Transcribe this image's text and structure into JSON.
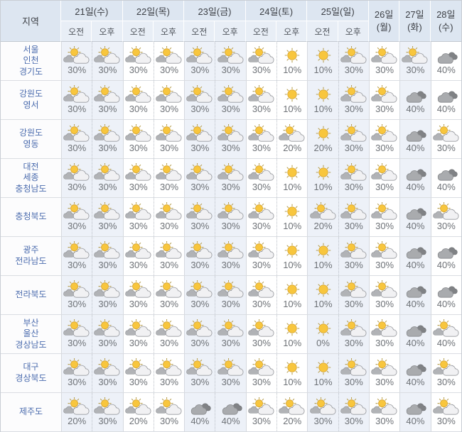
{
  "colors": {
    "day_tint": "#edf1f8",
    "header_day_bg": "#dde6f1",
    "header_sub_bg": "#e8eef6",
    "region_text": "#4b6cae",
    "percent_text": "#6e7277",
    "header_text": "#3d4046",
    "sun_fill": "#f8c63d",
    "sun_stroke": "#d9a62f",
    "ray_color": "#b49b4a",
    "light_cloud_fill": "#f1f1f3",
    "light_cloud_stroke": "#97999e",
    "small_dark_cloud_fill": "#b1b3b6",
    "small_dark_cloud_stroke": "#8a8c90",
    "gray_cloud_fill": "#a9abae",
    "gray_cloud_stroke": "#87898c",
    "back_cloud_fill": "#808285",
    "back_cloud_stroke": "#6c6e71"
  },
  "table": {
    "region_header": "지역",
    "am_label": "오전",
    "pm_label": "오후",
    "icons": {
      "partly_cloudy": "sun-behind-clouds",
      "sunny": "sun",
      "cloudy": "gray-clouds"
    },
    "days": [
      {
        "label": "21일(수)",
        "split": true,
        "tint": true
      },
      {
        "label": "22일(목)",
        "split": true,
        "tint": false
      },
      {
        "label": "23일(금)",
        "split": true,
        "tint": true
      },
      {
        "label": "24일(토)",
        "split": true,
        "tint": false
      },
      {
        "label": "25일(일)",
        "split": true,
        "tint": true
      },
      {
        "label": "26일",
        "sublabel": "(월)",
        "split": false,
        "tint": false
      },
      {
        "label": "27일",
        "sublabel": "(화)",
        "split": false,
        "tint": true
      },
      {
        "label": "28일",
        "sublabel": "(수)",
        "split": false,
        "tint": false
      }
    ],
    "rows": [
      {
        "region": [
          "서울",
          "인천",
          "경기도"
        ],
        "cells": [
          {
            "icon": "partly_cloudy",
            "pct": "30%"
          },
          {
            "icon": "partly_cloudy",
            "pct": "30%"
          },
          {
            "icon": "partly_cloudy",
            "pct": "30%"
          },
          {
            "icon": "partly_cloudy",
            "pct": "30%"
          },
          {
            "icon": "partly_cloudy",
            "pct": "30%"
          },
          {
            "icon": "partly_cloudy",
            "pct": "30%"
          },
          {
            "icon": "partly_cloudy",
            "pct": "30%"
          },
          {
            "icon": "sunny",
            "pct": "10%"
          },
          {
            "icon": "sunny",
            "pct": "10%"
          },
          {
            "icon": "partly_cloudy",
            "pct": "30%"
          },
          {
            "icon": "partly_cloudy",
            "pct": "30%"
          },
          {
            "icon": "partly_cloudy",
            "pct": "30%"
          },
          {
            "icon": "cloudy",
            "pct": "40%"
          }
        ]
      },
      {
        "region": [
          "강원도",
          "영서"
        ],
        "cells": [
          {
            "icon": "partly_cloudy",
            "pct": "30%"
          },
          {
            "icon": "partly_cloudy",
            "pct": "30%"
          },
          {
            "icon": "partly_cloudy",
            "pct": "30%"
          },
          {
            "icon": "partly_cloudy",
            "pct": "30%"
          },
          {
            "icon": "partly_cloudy",
            "pct": "30%"
          },
          {
            "icon": "partly_cloudy",
            "pct": "30%"
          },
          {
            "icon": "partly_cloudy",
            "pct": "30%"
          },
          {
            "icon": "sunny",
            "pct": "10%"
          },
          {
            "icon": "sunny",
            "pct": "10%"
          },
          {
            "icon": "partly_cloudy",
            "pct": "30%"
          },
          {
            "icon": "partly_cloudy",
            "pct": "30%"
          },
          {
            "icon": "cloudy",
            "pct": "40%"
          },
          {
            "icon": "cloudy",
            "pct": "40%"
          }
        ]
      },
      {
        "region": [
          "강원도",
          "영동"
        ],
        "cells": [
          {
            "icon": "partly_cloudy",
            "pct": "30%"
          },
          {
            "icon": "partly_cloudy",
            "pct": "30%"
          },
          {
            "icon": "partly_cloudy",
            "pct": "30%"
          },
          {
            "icon": "partly_cloudy",
            "pct": "30%"
          },
          {
            "icon": "partly_cloudy",
            "pct": "30%"
          },
          {
            "icon": "partly_cloudy",
            "pct": "30%"
          },
          {
            "icon": "partly_cloudy",
            "pct": "30%"
          },
          {
            "icon": "partly_cloudy",
            "pct": "20%"
          },
          {
            "icon": "sunny",
            "pct": "20%"
          },
          {
            "icon": "partly_cloudy",
            "pct": "30%"
          },
          {
            "icon": "partly_cloudy",
            "pct": "30%"
          },
          {
            "icon": "cloudy",
            "pct": "40%"
          },
          {
            "icon": "partly_cloudy",
            "pct": "30%"
          }
        ]
      },
      {
        "region": [
          "대전",
          "세종",
          "충청남도"
        ],
        "cells": [
          {
            "icon": "partly_cloudy",
            "pct": "30%"
          },
          {
            "icon": "partly_cloudy",
            "pct": "30%"
          },
          {
            "icon": "partly_cloudy",
            "pct": "30%"
          },
          {
            "icon": "partly_cloudy",
            "pct": "30%"
          },
          {
            "icon": "partly_cloudy",
            "pct": "30%"
          },
          {
            "icon": "partly_cloudy",
            "pct": "30%"
          },
          {
            "icon": "partly_cloudy",
            "pct": "30%"
          },
          {
            "icon": "sunny",
            "pct": "10%"
          },
          {
            "icon": "sunny",
            "pct": "10%"
          },
          {
            "icon": "partly_cloudy",
            "pct": "30%"
          },
          {
            "icon": "partly_cloudy",
            "pct": "30%"
          },
          {
            "icon": "cloudy",
            "pct": "40%"
          },
          {
            "icon": "cloudy",
            "pct": "40%"
          }
        ]
      },
      {
        "region": [
          "충청북도"
        ],
        "cells": [
          {
            "icon": "partly_cloudy",
            "pct": "30%"
          },
          {
            "icon": "partly_cloudy",
            "pct": "30%"
          },
          {
            "icon": "partly_cloudy",
            "pct": "30%"
          },
          {
            "icon": "partly_cloudy",
            "pct": "30%"
          },
          {
            "icon": "partly_cloudy",
            "pct": "30%"
          },
          {
            "icon": "partly_cloudy",
            "pct": "30%"
          },
          {
            "icon": "partly_cloudy",
            "pct": "30%"
          },
          {
            "icon": "sunny",
            "pct": "10%"
          },
          {
            "icon": "partly_cloudy",
            "pct": "20%"
          },
          {
            "icon": "partly_cloudy",
            "pct": "30%"
          },
          {
            "icon": "partly_cloudy",
            "pct": "30%"
          },
          {
            "icon": "cloudy",
            "pct": "40%"
          },
          {
            "icon": "partly_cloudy",
            "pct": "30%"
          }
        ]
      },
      {
        "region": [
          "광주",
          "전라남도"
        ],
        "cells": [
          {
            "icon": "partly_cloudy",
            "pct": "30%"
          },
          {
            "icon": "partly_cloudy",
            "pct": "30%"
          },
          {
            "icon": "partly_cloudy",
            "pct": "30%"
          },
          {
            "icon": "partly_cloudy",
            "pct": "30%"
          },
          {
            "icon": "partly_cloudy",
            "pct": "30%"
          },
          {
            "icon": "partly_cloudy",
            "pct": "30%"
          },
          {
            "icon": "partly_cloudy",
            "pct": "30%"
          },
          {
            "icon": "sunny",
            "pct": "10%"
          },
          {
            "icon": "sunny",
            "pct": "10%"
          },
          {
            "icon": "partly_cloudy",
            "pct": "30%"
          },
          {
            "icon": "partly_cloudy",
            "pct": "30%"
          },
          {
            "icon": "cloudy",
            "pct": "40%"
          },
          {
            "icon": "cloudy",
            "pct": "40%"
          }
        ]
      },
      {
        "region": [
          "전라북도"
        ],
        "cells": [
          {
            "icon": "partly_cloudy",
            "pct": "30%"
          },
          {
            "icon": "partly_cloudy",
            "pct": "30%"
          },
          {
            "icon": "partly_cloudy",
            "pct": "30%"
          },
          {
            "icon": "partly_cloudy",
            "pct": "30%"
          },
          {
            "icon": "partly_cloudy",
            "pct": "30%"
          },
          {
            "icon": "partly_cloudy",
            "pct": "30%"
          },
          {
            "icon": "partly_cloudy",
            "pct": "30%"
          },
          {
            "icon": "sunny",
            "pct": "10%"
          },
          {
            "icon": "sunny",
            "pct": "10%"
          },
          {
            "icon": "partly_cloudy",
            "pct": "30%"
          },
          {
            "icon": "partly_cloudy",
            "pct": "30%"
          },
          {
            "icon": "cloudy",
            "pct": "40%"
          },
          {
            "icon": "cloudy",
            "pct": "40%"
          }
        ]
      },
      {
        "region": [
          "부산",
          "울산",
          "경상남도"
        ],
        "cells": [
          {
            "icon": "partly_cloudy",
            "pct": "30%"
          },
          {
            "icon": "partly_cloudy",
            "pct": "30%"
          },
          {
            "icon": "partly_cloudy",
            "pct": "30%"
          },
          {
            "icon": "partly_cloudy",
            "pct": "30%"
          },
          {
            "icon": "partly_cloudy",
            "pct": "30%"
          },
          {
            "icon": "partly_cloudy",
            "pct": "30%"
          },
          {
            "icon": "partly_cloudy",
            "pct": "30%"
          },
          {
            "icon": "sunny",
            "pct": "10%"
          },
          {
            "icon": "sunny",
            "pct": "0%"
          },
          {
            "icon": "partly_cloudy",
            "pct": "30%"
          },
          {
            "icon": "partly_cloudy",
            "pct": "30%"
          },
          {
            "icon": "cloudy",
            "pct": "40%"
          },
          {
            "icon": "partly_cloudy",
            "pct": "40%"
          }
        ]
      },
      {
        "region": [
          "대구",
          "경상북도"
        ],
        "cells": [
          {
            "icon": "partly_cloudy",
            "pct": "30%"
          },
          {
            "icon": "partly_cloudy",
            "pct": "30%"
          },
          {
            "icon": "partly_cloudy",
            "pct": "30%"
          },
          {
            "icon": "partly_cloudy",
            "pct": "30%"
          },
          {
            "icon": "partly_cloudy",
            "pct": "30%"
          },
          {
            "icon": "partly_cloudy",
            "pct": "30%"
          },
          {
            "icon": "partly_cloudy",
            "pct": "30%"
          },
          {
            "icon": "sunny",
            "pct": "10%"
          },
          {
            "icon": "sunny",
            "pct": "10%"
          },
          {
            "icon": "partly_cloudy",
            "pct": "30%"
          },
          {
            "icon": "partly_cloudy",
            "pct": "30%"
          },
          {
            "icon": "cloudy",
            "pct": "40%"
          },
          {
            "icon": "partly_cloudy",
            "pct": "30%"
          }
        ]
      },
      {
        "region": [
          "제주도"
        ],
        "cells": [
          {
            "icon": "partly_cloudy",
            "pct": "20%"
          },
          {
            "icon": "partly_cloudy",
            "pct": "30%"
          },
          {
            "icon": "partly_cloudy",
            "pct": "20%"
          },
          {
            "icon": "partly_cloudy",
            "pct": "30%"
          },
          {
            "icon": "cloudy",
            "pct": "40%"
          },
          {
            "icon": "cloudy",
            "pct": "40%"
          },
          {
            "icon": "partly_cloudy",
            "pct": "30%"
          },
          {
            "icon": "partly_cloudy",
            "pct": "20%"
          },
          {
            "icon": "partly_cloudy",
            "pct": "30%"
          },
          {
            "icon": "partly_cloudy",
            "pct": "30%"
          },
          {
            "icon": "partly_cloudy",
            "pct": "30%"
          },
          {
            "icon": "cloudy",
            "pct": "40%"
          },
          {
            "icon": "partly_cloudy",
            "pct": "30%"
          }
        ]
      }
    ]
  }
}
